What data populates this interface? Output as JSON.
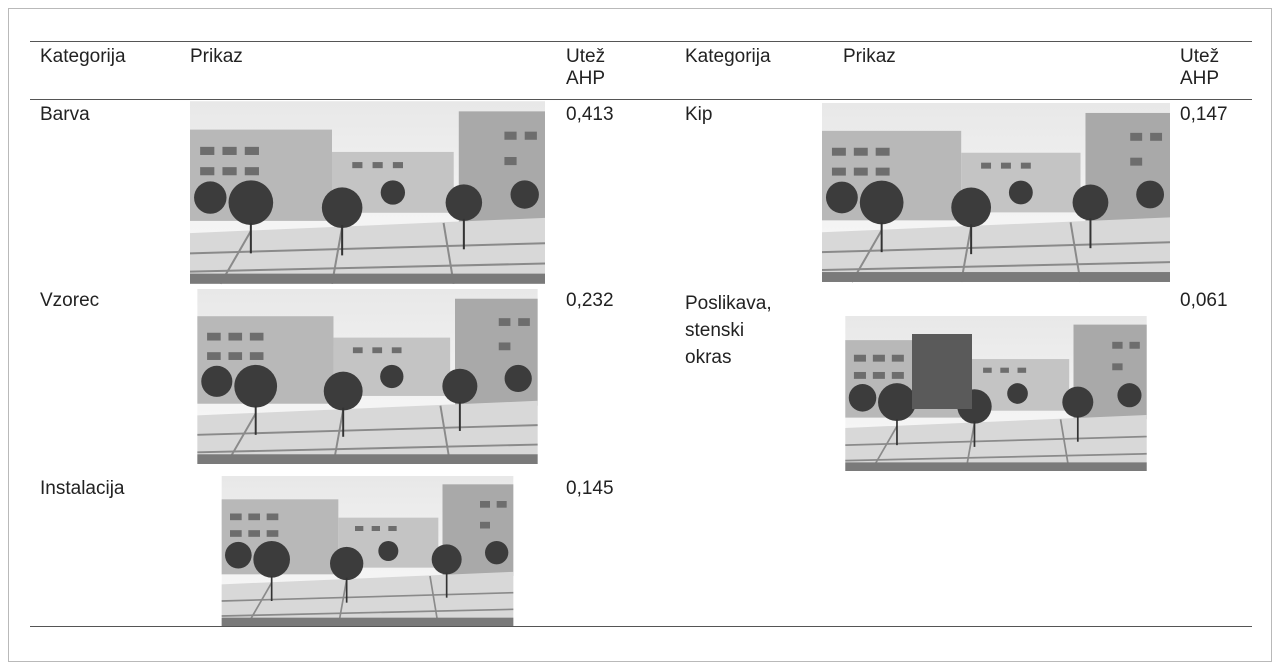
{
  "table": {
    "headers": [
      "Kategorija",
      "Prikaz",
      "Utež AHP",
      "Kategorija",
      "Prikaz",
      "Utež AHP"
    ],
    "left_rows": [
      [
        "Barva",
        "0,413"
      ],
      [
        "Vzorec",
        "0,232"
      ],
      [
        "Instalacija",
        "0,145"
      ]
    ],
    "right_rows": [
      [
        "Kip",
        "0,147"
      ],
      [
        "Poslikava, stenski okras",
        "0,061"
      ]
    ]
  }
}
